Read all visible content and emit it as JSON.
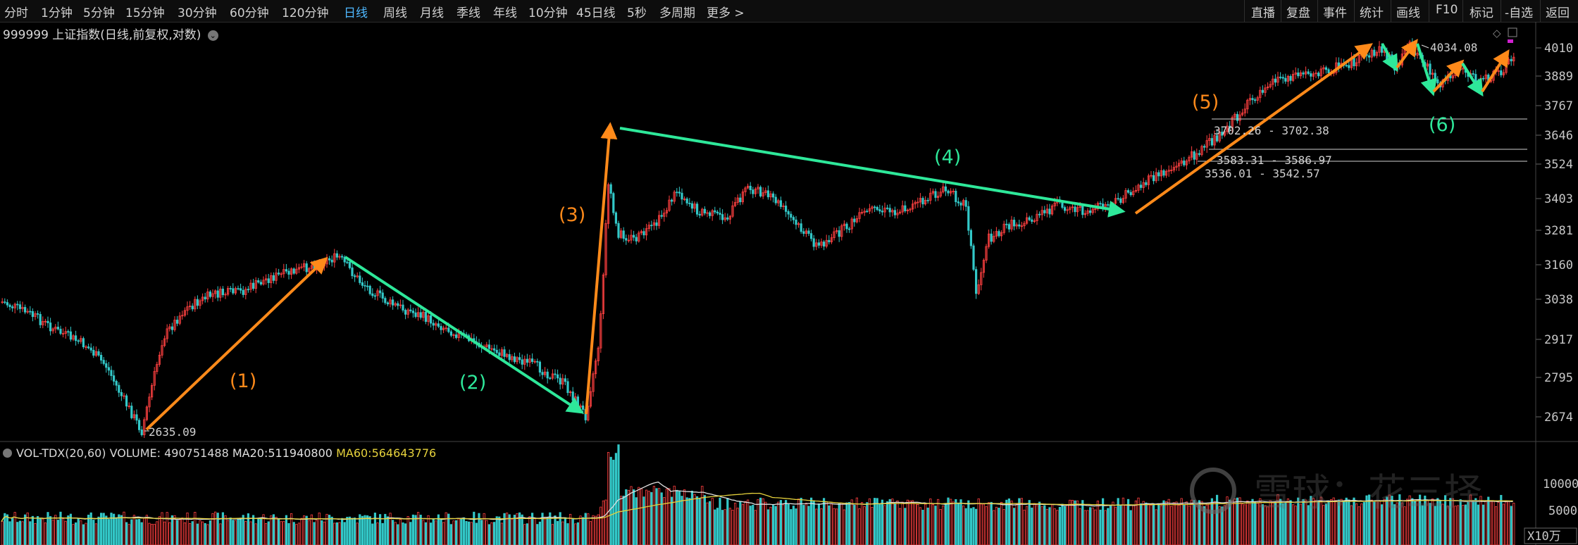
{
  "toolbar": {
    "periods": [
      "分时",
      "1分钟",
      "5分钟",
      "15分钟",
      "30分钟",
      "60分钟",
      "120分钟",
      "日线",
      "周线",
      "月线",
      "季线",
      "年线",
      "10分钟",
      "45日线",
      "5秒",
      "多周期",
      "更多 >"
    ],
    "active_period": "日线",
    "actions": [
      "直播",
      "复盘",
      "事件",
      "统计",
      "画线",
      "F10",
      "标记",
      "-自选",
      "返回"
    ]
  },
  "symbol": {
    "code_name": "999999 上证指数(日线,前复权,对数)",
    "menu_icon": "chevron-down-circle-icon"
  },
  "price_axis": [
    "4010",
    "3889",
    "3767",
    "3646",
    "3524",
    "3403",
    "3281",
    "3160",
    "3038",
    "2917",
    "2795",
    "2674"
  ],
  "annotations": {
    "low_price": "2635.09",
    "high_price": "4034.08",
    "gaps": [
      "3702.26 - 3702.38",
      "3583.31 - 3586.97",
      "3536.01 - 3542.57"
    ]
  },
  "waves": [
    {
      "label": "(1)",
      "color": "#ff8a1a"
    },
    {
      "label": "(2)",
      "color": "#2ee89a"
    },
    {
      "label": "(3)",
      "color": "#ff8a1a"
    },
    {
      "label": "(4)",
      "color": "#2ee89a"
    },
    {
      "label": "(5)",
      "color": "#ff8a1a"
    },
    {
      "label": "(6)",
      "color": "#2ee89a"
    }
  ],
  "volume": {
    "indicator": "VOL-TDX(20,60)",
    "volume_label": "VOLUME:",
    "volume_value": "490751488",
    "ma20_label": "MA20:",
    "ma20_value": "511940800",
    "ma60_label": "MA60:",
    "ma60_value": "564643776",
    "axis": [
      "10000",
      "5000"
    ],
    "unit": "X10万"
  },
  "watermark": "雪球：花三择",
  "colors": {
    "up": "#ff4040",
    "down": "#33c8c8",
    "ma20": "#e0e0e0",
    "ma60": "#e6d23c"
  }
}
